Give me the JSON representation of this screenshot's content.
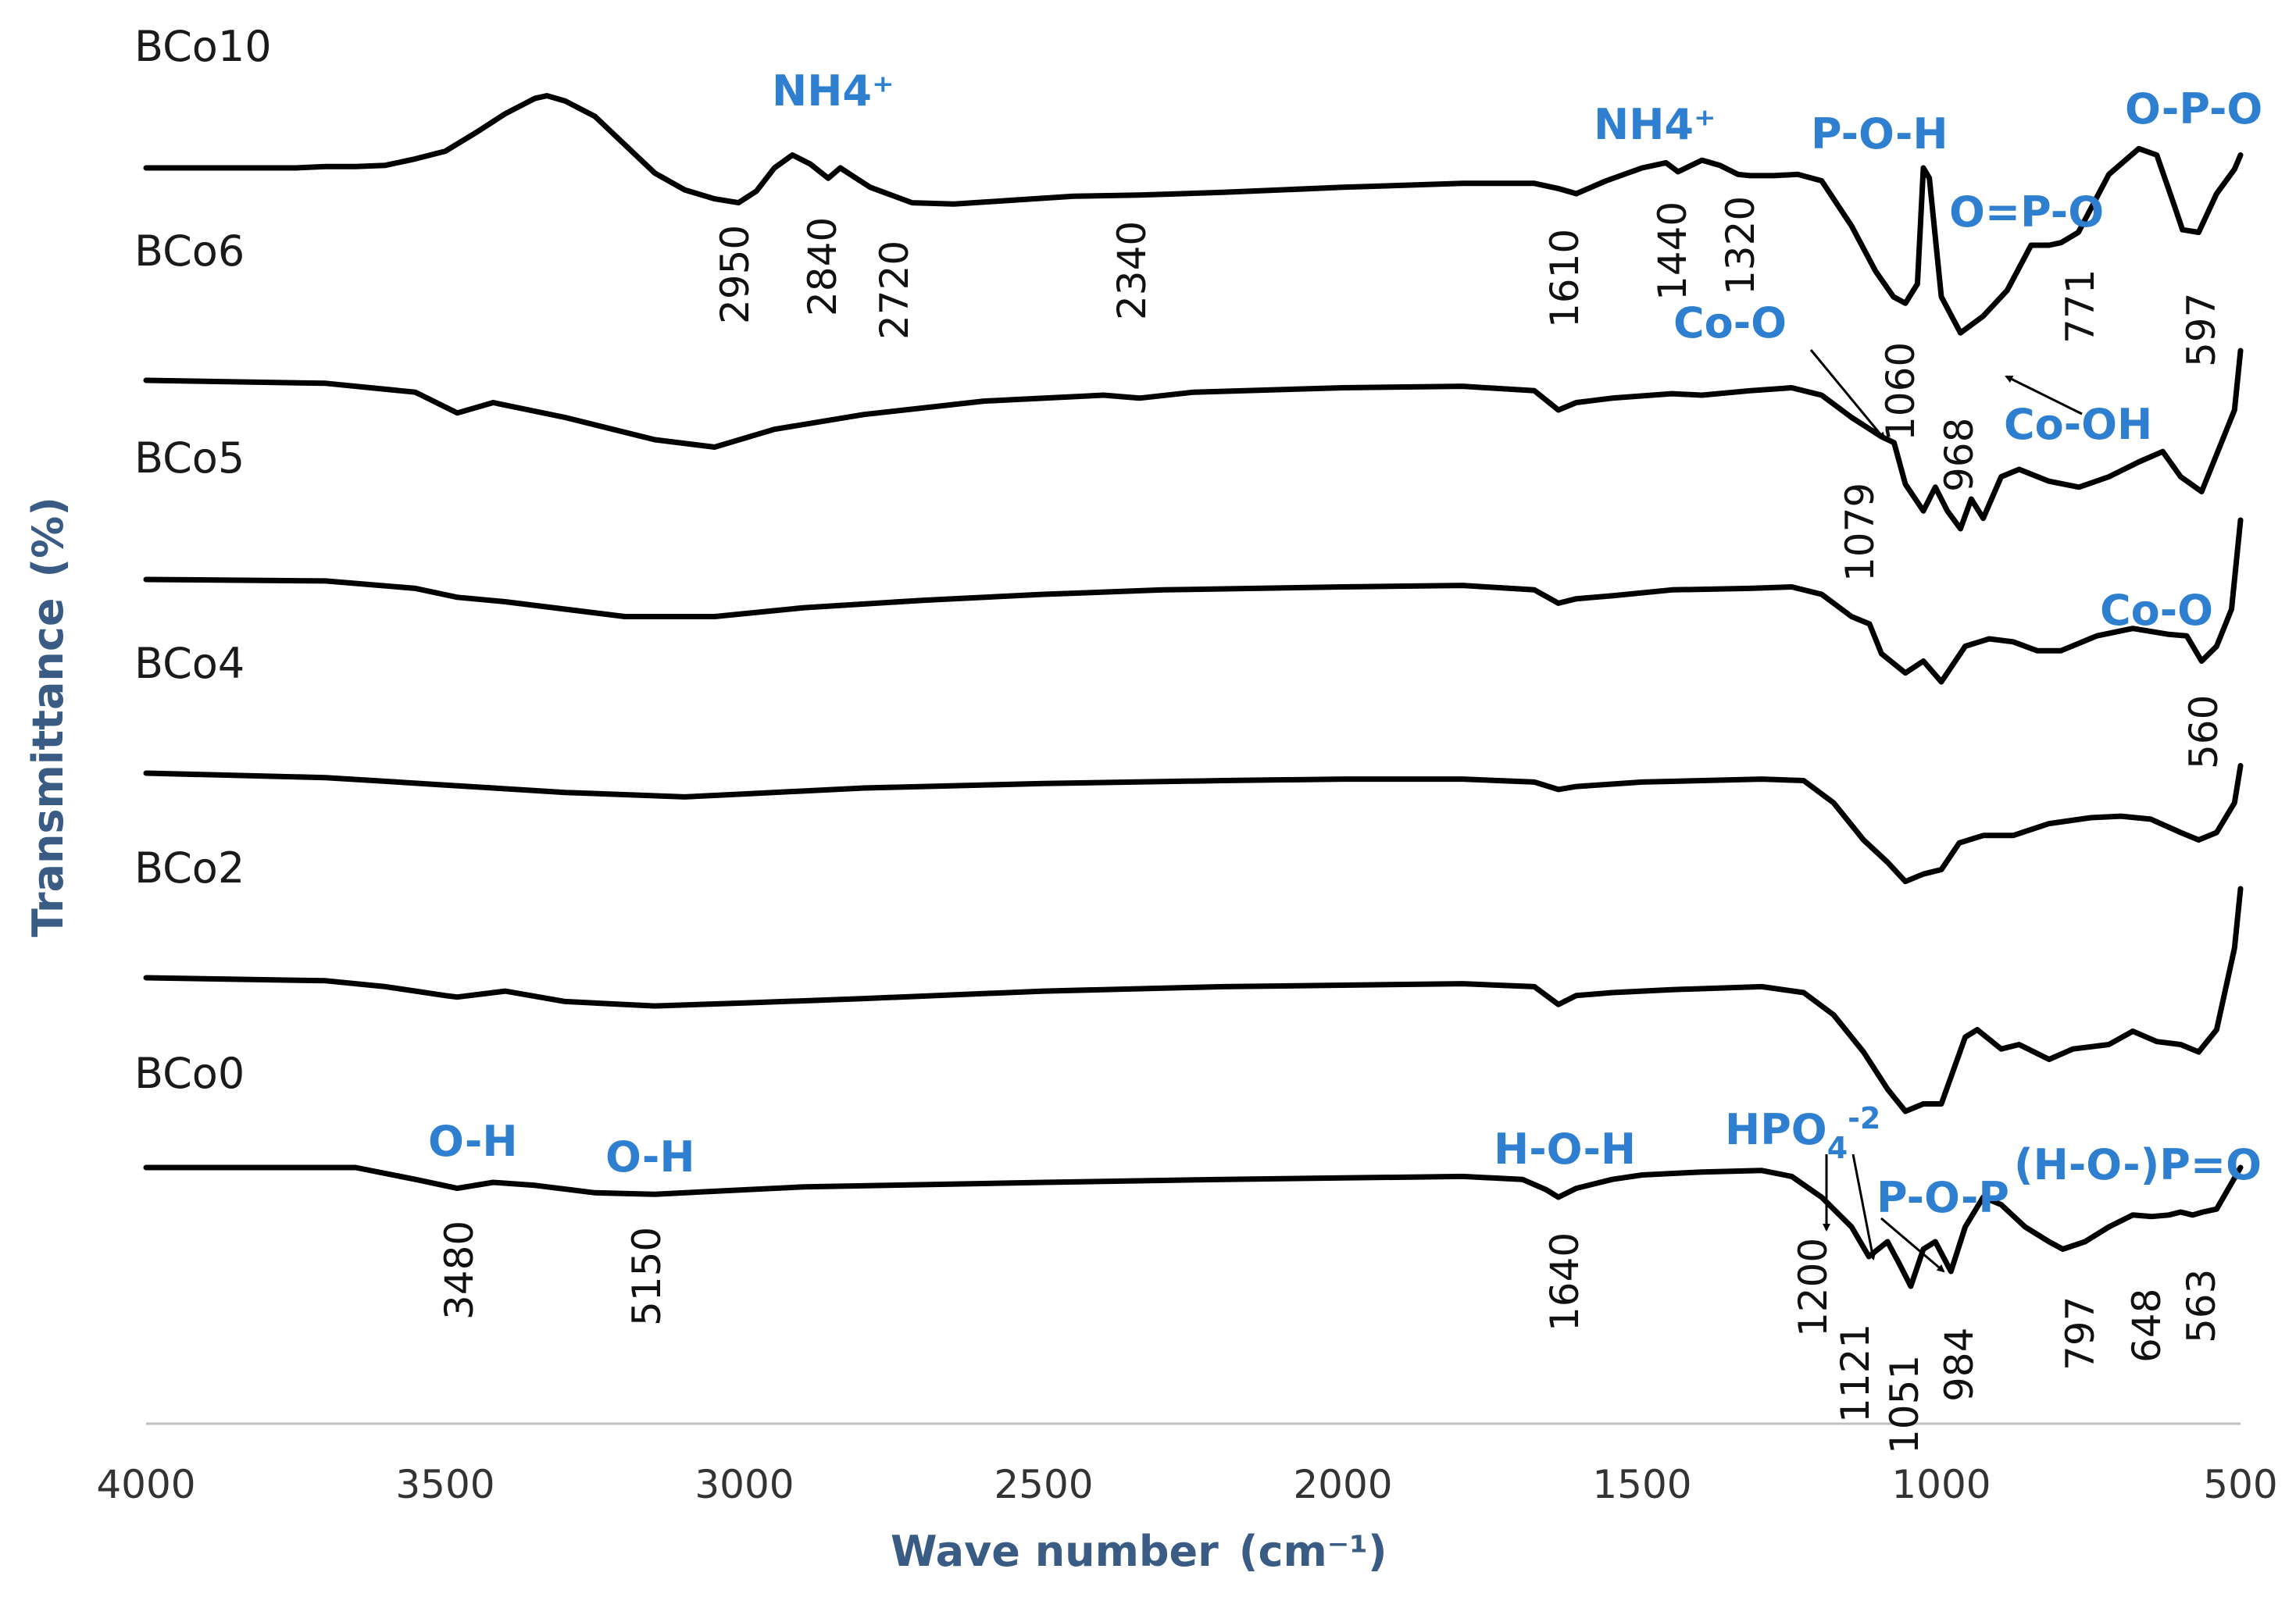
{
  "chart_data": {
    "type": "line",
    "xlabel": "Wave number",
    "xlabel_unit": "(cm⁻¹)",
    "ylabel": "Transmittance",
    "ylabel_unit": "(%)",
    "xlim": [
      4000,
      500
    ],
    "x_ticks": [
      "4000",
      "3500",
      "3000",
      "2500",
      "2000",
      "1500",
      "1000",
      "500"
    ],
    "series": [
      {
        "name": "BCo10",
        "points": [
          [
            4000,
            0.0
          ],
          [
            3750,
            0.0
          ],
          [
            3700,
            0.01
          ],
          [
            3650,
            0.01
          ],
          [
            3600,
            0.02
          ],
          [
            3550,
            0.07
          ],
          [
            3500,
            0.13
          ],
          [
            3450,
            0.27
          ],
          [
            3400,
            0.42
          ],
          [
            3350,
            0.54
          ],
          [
            3330,
            0.56
          ],
          [
            3300,
            0.52
          ],
          [
            3250,
            0.4
          ],
          [
            3200,
            0.18
          ],
          [
            3150,
            -0.04
          ],
          [
            3100,
            -0.17
          ],
          [
            3050,
            -0.24
          ],
          [
            3010,
            -0.27
          ],
          [
            2980,
            -0.18
          ],
          [
            2950,
            0.0
          ],
          [
            2920,
            0.1
          ],
          [
            2890,
            0.03
          ],
          [
            2860,
            -0.08
          ],
          [
            2840,
            0.0
          ],
          [
            2820,
            -0.06
          ],
          [
            2790,
            -0.15
          ],
          [
            2720,
            -0.27
          ],
          [
            2650,
            -0.28
          ],
          [
            2550,
            -0.25
          ],
          [
            2450,
            -0.22
          ],
          [
            2340,
            -0.21
          ],
          [
            2200,
            -0.19
          ],
          [
            2000,
            -0.15
          ],
          [
            1800,
            -0.12
          ],
          [
            1680,
            -0.12
          ],
          [
            1640,
            -0.16
          ],
          [
            1610,
            -0.2
          ],
          [
            1560,
            -0.1
          ],
          [
            1500,
            0.0
          ],
          [
            1460,
            0.04
          ],
          [
            1440,
            -0.03
          ],
          [
            1400,
            0.06
          ],
          [
            1370,
            0.02
          ],
          [
            1340,
            -0.05
          ],
          [
            1320,
            -0.06
          ],
          [
            1280,
            -0.06
          ],
          [
            1240,
            -0.05
          ],
          [
            1200,
            -0.1
          ],
          [
            1150,
            -0.45
          ],
          [
            1110,
            -0.8
          ],
          [
            1080,
            -1.0
          ],
          [
            1060,
            -1.05
          ],
          [
            1040,
            -0.9
          ],
          [
            1030,
            0.0
          ],
          [
            1020,
            -0.08
          ],
          [
            1000,
            -1.0
          ],
          [
            968,
            -1.28
          ],
          [
            930,
            -1.15
          ],
          [
            890,
            -0.95
          ],
          [
            850,
            -0.6
          ],
          [
            820,
            -0.6
          ],
          [
            800,
            -0.58
          ],
          [
            771,
            -0.5
          ],
          [
            720,
            -0.05
          ],
          [
            670,
            0.15
          ],
          [
            640,
            0.1
          ],
          [
            610,
            -0.3
          ],
          [
            597,
            -0.48
          ],
          [
            570,
            -0.5
          ],
          [
            540,
            -0.2
          ],
          [
            510,
            -0.01
          ],
          [
            500,
            0.1
          ]
        ]
      },
      {
        "name": "BCo6",
        "points": [
          [
            4000,
            0.0
          ],
          [
            3700,
            -0.02
          ],
          [
            3550,
            -0.08
          ],
          [
            3480,
            -0.22
          ],
          [
            3420,
            -0.15
          ],
          [
            3300,
            -0.25
          ],
          [
            3150,
            -0.4
          ],
          [
            3050,
            -0.45
          ],
          [
            2950,
            -0.33
          ],
          [
            2800,
            -0.23
          ],
          [
            2600,
            -0.14
          ],
          [
            2400,
            -0.1
          ],
          [
            2340,
            -0.12
          ],
          [
            2250,
            -0.08
          ],
          [
            2000,
            -0.05
          ],
          [
            1800,
            -0.04
          ],
          [
            1680,
            -0.07
          ],
          [
            1640,
            -0.2
          ],
          [
            1610,
            -0.15
          ],
          [
            1550,
            -0.12
          ],
          [
            1450,
            -0.09
          ],
          [
            1400,
            -0.1
          ],
          [
            1320,
            -0.07
          ],
          [
            1250,
            -0.05
          ],
          [
            1200,
            -0.1
          ],
          [
            1150,
            -0.25
          ],
          [
            1100,
            -0.38
          ],
          [
            1079,
            -0.42
          ],
          [
            1060,
            -0.7
          ],
          [
            1030,
            -0.88
          ],
          [
            1010,
            -0.72
          ],
          [
            990,
            -0.88
          ],
          [
            968,
            -1.0
          ],
          [
            950,
            -0.8
          ],
          [
            930,
            -0.93
          ],
          [
            900,
            -0.65
          ],
          [
            870,
            -0.6
          ],
          [
            820,
            -0.68
          ],
          [
            770,
            -0.72
          ],
          [
            720,
            -0.65
          ],
          [
            670,
            -0.55
          ],
          [
            630,
            -0.48
          ],
          [
            600,
            -0.65
          ],
          [
            565,
            -0.75
          ],
          [
            540,
            -0.5
          ],
          [
            510,
            -0.2
          ],
          [
            500,
            0.2
          ]
        ]
      },
      {
        "name": "BCo5",
        "points": [
          [
            4000,
            0.0
          ],
          [
            3700,
            -0.01
          ],
          [
            3550,
            -0.06
          ],
          [
            3480,
            -0.12
          ],
          [
            3400,
            -0.15
          ],
          [
            3200,
            -0.25
          ],
          [
            3050,
            -0.25
          ],
          [
            2900,
            -0.19
          ],
          [
            2700,
            -0.14
          ],
          [
            2500,
            -0.1
          ],
          [
            2300,
            -0.07
          ],
          [
            2000,
            -0.05
          ],
          [
            1800,
            -0.04
          ],
          [
            1680,
            -0.07
          ],
          [
            1640,
            -0.16
          ],
          [
            1610,
            -0.13
          ],
          [
            1550,
            -0.11
          ],
          [
            1450,
            -0.07
          ],
          [
            1320,
            -0.06
          ],
          [
            1250,
            -0.05
          ],
          [
            1200,
            -0.1
          ],
          [
            1150,
            -0.25
          ],
          [
            1120,
            -0.3
          ],
          [
            1100,
            -0.5
          ],
          [
            1060,
            -0.63
          ],
          [
            1030,
            -0.55
          ],
          [
            1000,
            -0.69
          ],
          [
            960,
            -0.45
          ],
          [
            920,
            -0.4
          ],
          [
            880,
            -0.42
          ],
          [
            840,
            -0.48
          ],
          [
            800,
            -0.48
          ],
          [
            740,
            -0.38
          ],
          [
            680,
            -0.33
          ],
          [
            620,
            -0.37
          ],
          [
            590,
            -0.38
          ],
          [
            565,
            -0.55
          ],
          [
            540,
            -0.45
          ],
          [
            515,
            -0.2
          ],
          [
            500,
            0.4
          ]
        ]
      },
      {
        "name": "BCo4",
        "points": [
          [
            4000,
            0.0
          ],
          [
            3700,
            -0.03
          ],
          [
            3500,
            -0.08
          ],
          [
            3300,
            -0.13
          ],
          [
            3100,
            -0.16
          ],
          [
            3000,
            -0.14
          ],
          [
            2800,
            -0.1
          ],
          [
            2500,
            -0.07
          ],
          [
            2200,
            -0.05
          ],
          [
            2000,
            -0.04
          ],
          [
            1800,
            -0.04
          ],
          [
            1680,
            -0.06
          ],
          [
            1640,
            -0.11
          ],
          [
            1610,
            -0.09
          ],
          [
            1500,
            -0.06
          ],
          [
            1300,
            -0.04
          ],
          [
            1230,
            -0.05
          ],
          [
            1180,
            -0.2
          ],
          [
            1130,
            -0.45
          ],
          [
            1090,
            -0.6
          ],
          [
            1060,
            -0.73
          ],
          [
            1030,
            -0.68
          ],
          [
            1000,
            -0.65
          ],
          [
            970,
            -0.47
          ],
          [
            930,
            -0.42
          ],
          [
            880,
            -0.42
          ],
          [
            820,
            -0.34
          ],
          [
            750,
            -0.3
          ],
          [
            700,
            -0.29
          ],
          [
            650,
            -0.31
          ],
          [
            600,
            -0.4
          ],
          [
            570,
            -0.45
          ],
          [
            540,
            -0.4
          ],
          [
            510,
            -0.2
          ],
          [
            500,
            0.05
          ]
        ]
      },
      {
        "name": "BCo2",
        "points": [
          [
            4000,
            0.0
          ],
          [
            3700,
            -0.02
          ],
          [
            3600,
            -0.06
          ],
          [
            3500,
            -0.12
          ],
          [
            3480,
            -0.13
          ],
          [
            3400,
            -0.09
          ],
          [
            3300,
            -0.16
          ],
          [
            3150,
            -0.19
          ],
          [
            3000,
            -0.17
          ],
          [
            2800,
            -0.14
          ],
          [
            2500,
            -0.09
          ],
          [
            2200,
            -0.06
          ],
          [
            2000,
            -0.05
          ],
          [
            1800,
            -0.04
          ],
          [
            1680,
            -0.06
          ],
          [
            1640,
            -0.18
          ],
          [
            1610,
            -0.12
          ],
          [
            1550,
            -0.1
          ],
          [
            1450,
            -0.08
          ],
          [
            1300,
            -0.06
          ],
          [
            1230,
            -0.1
          ],
          [
            1180,
            -0.25
          ],
          [
            1130,
            -0.5
          ],
          [
            1090,
            -0.75
          ],
          [
            1060,
            -0.9
          ],
          [
            1030,
            -0.85
          ],
          [
            1000,
            -0.85
          ],
          [
            960,
            -0.4
          ],
          [
            940,
            -0.35
          ],
          [
            900,
            -0.48
          ],
          [
            870,
            -0.45
          ],
          [
            820,
            -0.55
          ],
          [
            780,
            -0.48
          ],
          [
            720,
            -0.45
          ],
          [
            680,
            -0.36
          ],
          [
            640,
            -0.43
          ],
          [
            600,
            -0.45
          ],
          [
            570,
            -0.5
          ],
          [
            540,
            -0.35
          ],
          [
            510,
            0.2
          ],
          [
            500,
            0.6
          ]
        ]
      },
      {
        "name": "BCo0",
        "points": [
          [
            4000,
            0.0
          ],
          [
            3750,
            0.0
          ],
          [
            3650,
            0.0
          ],
          [
            3550,
            -0.08
          ],
          [
            3480,
            -0.14
          ],
          [
            3420,
            -0.1
          ],
          [
            3350,
            -0.12
          ],
          [
            3250,
            -0.17
          ],
          [
            3150,
            -0.18
          ],
          [
            3050,
            -0.16
          ],
          [
            2900,
            -0.13
          ],
          [
            2500,
            -0.1
          ],
          [
            2200,
            -0.08
          ],
          [
            2000,
            -0.07
          ],
          [
            1800,
            -0.06
          ],
          [
            1700,
            -0.08
          ],
          [
            1660,
            -0.15
          ],
          [
            1640,
            -0.2
          ],
          [
            1610,
            -0.14
          ],
          [
            1550,
            -0.08
          ],
          [
            1500,
            -0.05
          ],
          [
            1400,
            -0.03
          ],
          [
            1300,
            -0.02
          ],
          [
            1250,
            -0.06
          ],
          [
            1200,
            -0.2
          ],
          [
            1150,
            -0.4
          ],
          [
            1121,
            -0.6
          ],
          [
            1090,
            -0.5
          ],
          [
            1070,
            -0.65
          ],
          [
            1051,
            -0.8
          ],
          [
            1030,
            -0.55
          ],
          [
            1010,
            -0.5
          ],
          [
            984,
            -0.7
          ],
          [
            960,
            -0.4
          ],
          [
            930,
            -0.2
          ],
          [
            900,
            -0.25
          ],
          [
            860,
            -0.4
          ],
          [
            820,
            -0.5
          ],
          [
            797,
            -0.55
          ],
          [
            760,
            -0.5
          ],
          [
            720,
            -0.4
          ],
          [
            680,
            -0.32
          ],
          [
            648,
            -0.33
          ],
          [
            620,
            -0.32
          ],
          [
            600,
            -0.3
          ],
          [
            580,
            -0.32
          ],
          [
            563,
            -0.3
          ],
          [
            540,
            -0.28
          ],
          [
            500,
            0.0
          ]
        ]
      }
    ],
    "peak_labels": {
      "BCo10": [
        "2950",
        "2840",
        "2720",
        "2340",
        "1610",
        "1440",
        "1320",
        "1060",
        "968",
        "771",
        "597"
      ],
      "BCo6": [
        "1079"
      ],
      "BCo5": [
        "560"
      ],
      "BCo0": [
        "3480",
        "5150",
        "1640",
        "1200",
        "1121",
        "1051",
        "984",
        "797",
        "648",
        "563"
      ]
    },
    "assignments": {
      "nh4_a": "NH4⁺",
      "nh4_b": "NH4⁺",
      "poh": "P-O-H",
      "opo_dbl": "O=P-O",
      "opo": "O-P-O",
      "coo_a": "Co-O",
      "cooh": "Co-OH",
      "coo_b": "Co-O",
      "oh_a": "O-H",
      "oh_b": "O-H",
      "hoh": "H-O-H",
      "hpo4": "HPO",
      "hpo4_sub": "4",
      "hpo4_sup": "-2",
      "pop": "P-O-P",
      "hopo": "(H-O-)P=O"
    },
    "colors": {
      "line": "#000000",
      "assignment_text": "#2e7fcf",
      "axis_title": "#3a5c84",
      "axis_line": "#bfbfbf"
    }
  }
}
